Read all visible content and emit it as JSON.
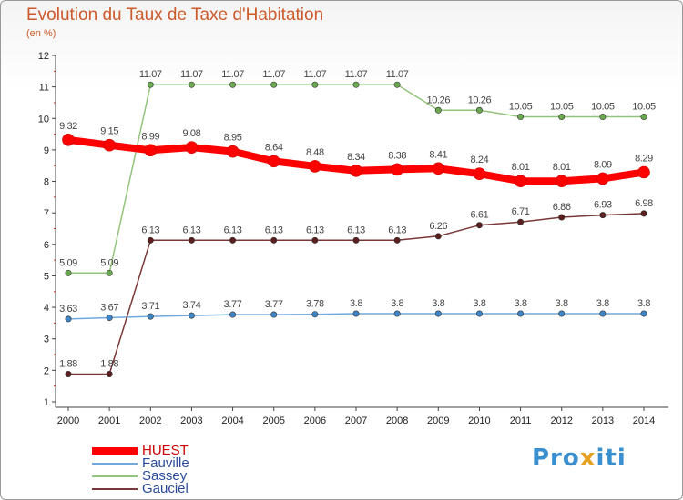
{
  "title": "Evolution du Taux de Taxe d'Habitation",
  "subtitle": "(en %)",
  "logo": {
    "parts": [
      "Pro",
      "x",
      "iti"
    ],
    "colors": [
      "#3a8fd0",
      "#e8a020",
      "#3a8fd0"
    ]
  },
  "chart_data": {
    "type": "line",
    "categories": [
      "2000",
      "2001",
      "2002",
      "2003",
      "2004",
      "2005",
      "2006",
      "2007",
      "2008",
      "2009",
      "2010",
      "2011",
      "2012",
      "2013",
      "2014"
    ],
    "ylim": [
      1,
      12
    ],
    "yticks": [
      1,
      2,
      3,
      4,
      5,
      6,
      7,
      8,
      9,
      10,
      11,
      12
    ],
    "grid": false,
    "legend_position": "bottom-left",
    "series": [
      {
        "name": "HUEST",
        "color": "#ff0000",
        "marker": "#ff0000",
        "labelColor": "#444444",
        "thick": true,
        "values": [
          9.32,
          9.15,
          8.99,
          9.08,
          8.95,
          8.64,
          8.48,
          8.34,
          8.38,
          8.41,
          8.24,
          8.01,
          8.01,
          8.09,
          8.29
        ],
        "labels": [
          "9.32",
          "9.15",
          "8.99",
          "9.08",
          "8.95",
          "8.64",
          "8.48",
          "8.34",
          "8.38",
          "8.41",
          "8.24",
          "8.01",
          "8.01",
          "8.09",
          "8.29"
        ]
      },
      {
        "name": "Fauville",
        "color": "#6fa8dc",
        "marker": "#3d85c6",
        "labelColor": "#444444",
        "thick": false,
        "values": [
          3.63,
          3.67,
          3.71,
          3.74,
          3.77,
          3.77,
          3.78,
          3.8,
          3.8,
          3.8,
          3.8,
          3.8,
          3.8,
          3.8,
          3.8
        ],
        "labels": [
          "3.63",
          "3.67",
          "3.71",
          "3.74",
          "3.77",
          "3.77",
          "3.78",
          "3.8",
          "3.8",
          "3.8",
          "3.8",
          "3.8",
          "3.8",
          "3.8",
          "3.8"
        ]
      },
      {
        "name": "Sassey",
        "color": "#93c47d",
        "marker": "#6aa84f",
        "labelColor": "#444444",
        "thick": false,
        "values": [
          5.09,
          5.09,
          11.07,
          11.07,
          11.07,
          11.07,
          11.07,
          11.07,
          11.07,
          10.26,
          10.26,
          10.05,
          10.05,
          10.05,
          10.05
        ],
        "labels": [
          "5.09",
          "5.09",
          "11.07",
          "11.07",
          "11.07",
          "11.07",
          "11.07",
          "11.07",
          "11.07",
          "10.26",
          "10.26",
          "10.05",
          "10.05",
          "10.05",
          "10.05"
        ]
      },
      {
        "name": "Gauciel",
        "color": "#7a3838",
        "marker": "#5b1f1f",
        "labelColor": "#444444",
        "thick": false,
        "values": [
          1.88,
          1.88,
          6.13,
          6.13,
          6.13,
          6.13,
          6.13,
          6.13,
          6.13,
          6.26,
          6.61,
          6.71,
          6.86,
          6.93,
          6.98
        ],
        "labels": [
          "1.88",
          "1.88",
          "6.13",
          "6.13",
          "6.13",
          "6.13",
          "6.13",
          "6.13",
          "6.13",
          "6.26",
          "6.61",
          "6.71",
          "6.86",
          "6.93",
          "6.98"
        ]
      }
    ]
  }
}
